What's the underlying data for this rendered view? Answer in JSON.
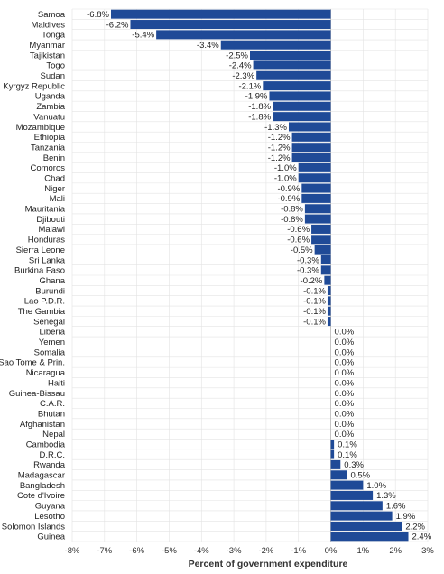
{
  "chart_data": {
    "type": "bar",
    "orientation": "horizontal",
    "categories": [
      "Samoa",
      "Maldives",
      "Tonga",
      "Myanmar",
      "Tajikistan",
      "Togo",
      "Sudan",
      "Kyrgyz Republic",
      "Uganda",
      "Zambia",
      "Vanuatu",
      "Mozambique",
      "Ethiopia",
      "Tanzania",
      "Benin",
      "Comoros",
      "Chad",
      "Niger",
      "Mali",
      "Mauritania",
      "Djibouti",
      "Malawi",
      "Honduras",
      "Sierra Leone",
      "Sri Lanka",
      "Burkina Faso",
      "Ghana",
      "Burundi",
      "Lao P.D.R.",
      "The Gambia",
      "Senegal",
      "Liberia",
      "Yemen",
      "Somalia",
      "Sao Tome & Prin.",
      "Nicaragua",
      "Haiti",
      "Guinea-Bissau",
      "C.A.R.",
      "Bhutan",
      "Afghanistan",
      "Nepal",
      "Cambodia",
      "D.R.C.",
      "Rwanda",
      "Madagascar",
      "Bangladesh",
      "Cote d'Ivoire",
      "Guyana",
      "Lesotho",
      "Solomon Islands",
      "Guinea"
    ],
    "values": [
      -6.8,
      -6.2,
      -5.4,
      -3.4,
      -2.5,
      -2.4,
      -2.3,
      -2.1,
      -1.9,
      -1.8,
      -1.8,
      -1.3,
      -1.2,
      -1.2,
      -1.2,
      -1.0,
      -1.0,
      -0.9,
      -0.9,
      -0.8,
      -0.8,
      -0.6,
      -0.6,
      -0.5,
      -0.3,
      -0.3,
      -0.2,
      -0.1,
      -0.1,
      -0.1,
      -0.1,
      0.0,
      0.0,
      0.0,
      0.0,
      0.0,
      0.0,
      0.0,
      0.0,
      0.0,
      0.0,
      0.0,
      0.1,
      0.1,
      0.3,
      0.5,
      1.0,
      1.3,
      1.6,
      1.9,
      2.2,
      2.4
    ],
    "value_labels": [
      "-6.8%",
      "-6.2%",
      "-5.4%",
      "-3.4%",
      "-2.5%",
      "-2.4%",
      "-2.3%",
      "-2.1%",
      "-1.9%",
      "-1.8%",
      "-1.8%",
      "-1.3%",
      "-1.2%",
      "-1.2%",
      "-1.2%",
      "-1.0%",
      "-1.0%",
      "-0.9%",
      "-0.9%",
      "-0.8%",
      "-0.8%",
      "-0.6%",
      "-0.6%",
      "-0.5%",
      "-0.3%",
      "-0.3%",
      "-0.2%",
      "-0.1%",
      "-0.1%",
      "-0.1%",
      "-0.1%",
      "0.0%",
      "0.0%",
      "0.0%",
      "0.0%",
      "0.0%",
      "0.0%",
      "0.0%",
      "0.0%",
      "0.0%",
      "0.0%",
      "0.0%",
      "0.1%",
      "0.1%",
      "0.3%",
      "0.5%",
      "1.0%",
      "1.3%",
      "1.6%",
      "1.9%",
      "2.2%",
      "2.4%"
    ],
    "xlim": [
      -8,
      3
    ],
    "xticks": [
      -8,
      -7,
      -6,
      -5,
      -4,
      -3,
      -2,
      -1,
      0,
      1,
      2,
      3
    ],
    "xtick_labels": [
      "-8%",
      "-7%",
      "-6%",
      "-5%",
      "-4%",
      "-3%",
      "-2%",
      "-1%",
      "0%",
      "1%",
      "2%",
      "3%"
    ],
    "xlabel": "Percent of government expenditure",
    "title": "",
    "grid": true,
    "legend": "none",
    "bar_color": "#1f4a97",
    "grid_color": "#e3e3e3"
  }
}
